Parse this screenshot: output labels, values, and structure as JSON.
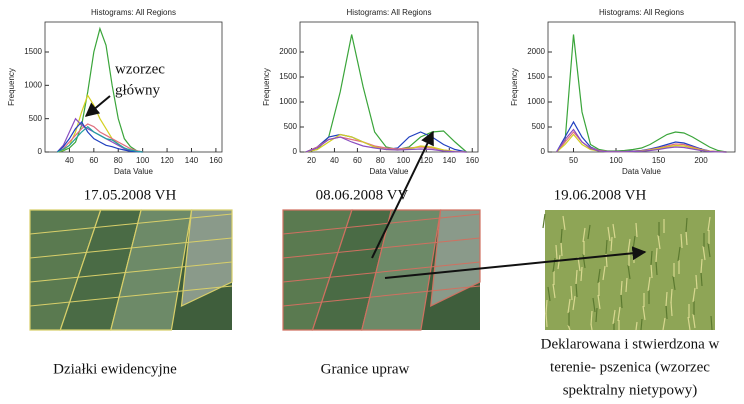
{
  "chart_data": [
    {
      "type": "line",
      "title": "Histograms: All Regions",
      "x_label": "Data Value",
      "y_label": "Frequency",
      "x": [
        30,
        35,
        40,
        45,
        50,
        55,
        60,
        65,
        70,
        75,
        80,
        85,
        90,
        95,
        100
      ],
      "xlim": [
        20,
        165
      ],
      "xticks": [
        40,
        60,
        80,
        100,
        120,
        140,
        160
      ],
      "ylim": [
        0,
        1950
      ],
      "yticks": [
        0,
        500,
        1000,
        1500
      ],
      "annotation": [
        "wzorzec",
        "główny"
      ],
      "series": [
        {
          "color": "#3aa53a",
          "values": [
            0,
            20,
            60,
            150,
            400,
            900,
            1500,
            1850,
            1600,
            1000,
            500,
            200,
            80,
            20,
            0
          ]
        },
        {
          "color": "#d4d020",
          "values": [
            0,
            30,
            100,
            300,
            600,
            850,
            700,
            500,
            350,
            200,
            120,
            60,
            20,
            5,
            0
          ]
        },
        {
          "color": "#8a4fc0",
          "values": [
            0,
            100,
            300,
            500,
            400,
            350,
            300,
            250,
            200,
            150,
            100,
            50,
            20,
            5,
            0
          ]
        },
        {
          "color": "#e07080",
          "values": [
            0,
            50,
            150,
            250,
            350,
            420,
            380,
            300,
            250,
            200,
            150,
            100,
            50,
            20,
            0
          ]
        },
        {
          "color": "#2040c0",
          "values": [
            0,
            80,
            200,
            350,
            450,
            300,
            200,
            150,
            100,
            80,
            50,
            30,
            10,
            5,
            0
          ]
        },
        {
          "color": "#20a0a0",
          "values": [
            0,
            40,
            100,
            200,
            300,
            380,
            300,
            250,
            200,
            180,
            120,
            60,
            30,
            10,
            0
          ]
        }
      ]
    },
    {
      "type": "line",
      "title": "Histograms: All Regions",
      "x_label": "Data Value",
      "y_label": "Frequency",
      "x": [
        15,
        25,
        35,
        45,
        55,
        65,
        75,
        85,
        95,
        105,
        115,
        125,
        135,
        145,
        155
      ],
      "xlim": [
        10,
        165
      ],
      "xticks": [
        20,
        40,
        60,
        80,
        100,
        120,
        140,
        160
      ],
      "ylim": [
        0,
        2600
      ],
      "yticks": [
        0,
        500,
        1000,
        1500,
        2000
      ],
      "series": [
        {
          "color": "#3aa53a",
          "values": [
            0,
            50,
            300,
            1200,
            2350,
            1300,
            400,
            100,
            50,
            100,
            300,
            400,
            420,
            200,
            0
          ]
        },
        {
          "color": "#2040c0",
          "values": [
            0,
            100,
            300,
            350,
            300,
            200,
            100,
            50,
            80,
            300,
            400,
            300,
            150,
            50,
            0
          ]
        },
        {
          "color": "#e07080",
          "values": [
            0,
            100,
            250,
            300,
            250,
            200,
            120,
            80,
            60,
            80,
            100,
            80,
            40,
            10,
            0
          ]
        },
        {
          "color": "#d4d020",
          "values": [
            0,
            50,
            200,
            350,
            300,
            200,
            100,
            50,
            40,
            60,
            120,
            100,
            40,
            10,
            0
          ]
        },
        {
          "color": "#8a4fc0",
          "values": [
            0,
            80,
            250,
            300,
            200,
            120,
            80,
            50,
            40,
            50,
            60,
            50,
            20,
            5,
            0
          ]
        }
      ]
    },
    {
      "type": "line",
      "title": "Histograms: All Regions",
      "x_label": "Data Value",
      "y_label": "Frequency",
      "x": [
        30,
        40,
        50,
        60,
        70,
        80,
        90,
        100,
        110,
        120,
        130,
        140,
        150,
        160,
        170,
        180,
        190,
        200,
        210,
        220,
        230
      ],
      "xlim": [
        20,
        240
      ],
      "xticks": [
        50,
        100,
        150,
        200
      ],
      "ylim": [
        0,
        2600
      ],
      "yticks": [
        0,
        500,
        1000,
        1500,
        2000
      ],
      "series": [
        {
          "color": "#3aa53a",
          "values": [
            0,
            200,
            2350,
            800,
            150,
            50,
            20,
            20,
            30,
            50,
            80,
            150,
            250,
            350,
            400,
            380,
            300,
            200,
            100,
            30,
            0
          ]
        },
        {
          "color": "#2040c0",
          "values": [
            0,
            300,
            600,
            300,
            100,
            30,
            10,
            10,
            10,
            20,
            30,
            60,
            100,
            150,
            200,
            180,
            120,
            60,
            20,
            5,
            0
          ]
        },
        {
          "color": "#e07080",
          "values": [
            0,
            200,
            400,
            200,
            80,
            30,
            10,
            10,
            10,
            15,
            25,
            50,
            80,
            120,
            160,
            150,
            100,
            50,
            20,
            5,
            0
          ]
        },
        {
          "color": "#d4d020",
          "values": [
            0,
            150,
            350,
            150,
            50,
            20,
            5,
            5,
            5,
            10,
            20,
            40,
            70,
            100,
            130,
            120,
            80,
            40,
            15,
            5,
            0
          ]
        },
        {
          "color": "#8a4fc0",
          "values": [
            0,
            250,
            450,
            200,
            70,
            20,
            5,
            5,
            5,
            10,
            15,
            30,
            50,
            80,
            100,
            90,
            60,
            30,
            10,
            3,
            0
          ]
        }
      ]
    }
  ],
  "image_captions": [
    "17.05.2008 VH",
    "08.06.2008 VV",
    "19.06.2008 VH"
  ],
  "descriptions": [
    [
      "Działki ewidencyjne"
    ],
    [
      "Granice upraw"
    ],
    [
      "Deklarowana i stwierdzona w",
      "terenie- pszenica (wzorzec",
      "spektralny nietypowy)"
    ]
  ]
}
